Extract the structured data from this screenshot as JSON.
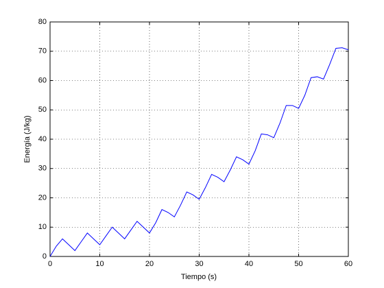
{
  "chart_data": {
    "type": "line",
    "x_label": "Tiempo (s)",
    "y_label": "Energía (J/kg)",
    "x": [
      0,
      1.25,
      2.5,
      3.75,
      5,
      6.25,
      7.5,
      8.75,
      10,
      11.25,
      12.5,
      13.75,
      15,
      16.25,
      17.5,
      18.75,
      20,
      21.25,
      22.5,
      23.75,
      25,
      26.25,
      27.5,
      28.75,
      30,
      31.25,
      32.5,
      33.75,
      35,
      36.25,
      37.5,
      38.75,
      40,
      41.25,
      42.5,
      43.75,
      45,
      46.25,
      47.5,
      48.75,
      50,
      51.25,
      52.5,
      53.75,
      55,
      56.25,
      57.5,
      58.75,
      60
    ],
    "series": [
      {
        "color": "#0000ff",
        "values": [
          0,
          3.5,
          6,
          4,
          2,
          5,
          8,
          6,
          4,
          7,
          10,
          8,
          6,
          9,
          12,
          10,
          8,
          11.5,
          16,
          15,
          13.5,
          17.5,
          22,
          21,
          19.5,
          23.5,
          28,
          27,
          25.5,
          29.5,
          34,
          33,
          31.5,
          36,
          41.8,
          41.5,
          40.5,
          45.5,
          51.5,
          51.5,
          50.5,
          55,
          61,
          61.3,
          60.5,
          65.5,
          71,
          71.2,
          70.5
        ]
      }
    ],
    "xlim": [
      0,
      60
    ],
    "xticks": [
      0,
      10,
      20,
      30,
      40,
      50,
      60
    ],
    "ylim": [
      0,
      80
    ],
    "yticks": [
      0,
      10,
      20,
      30,
      40,
      50,
      60,
      70,
      80
    ],
    "grid": true
  }
}
